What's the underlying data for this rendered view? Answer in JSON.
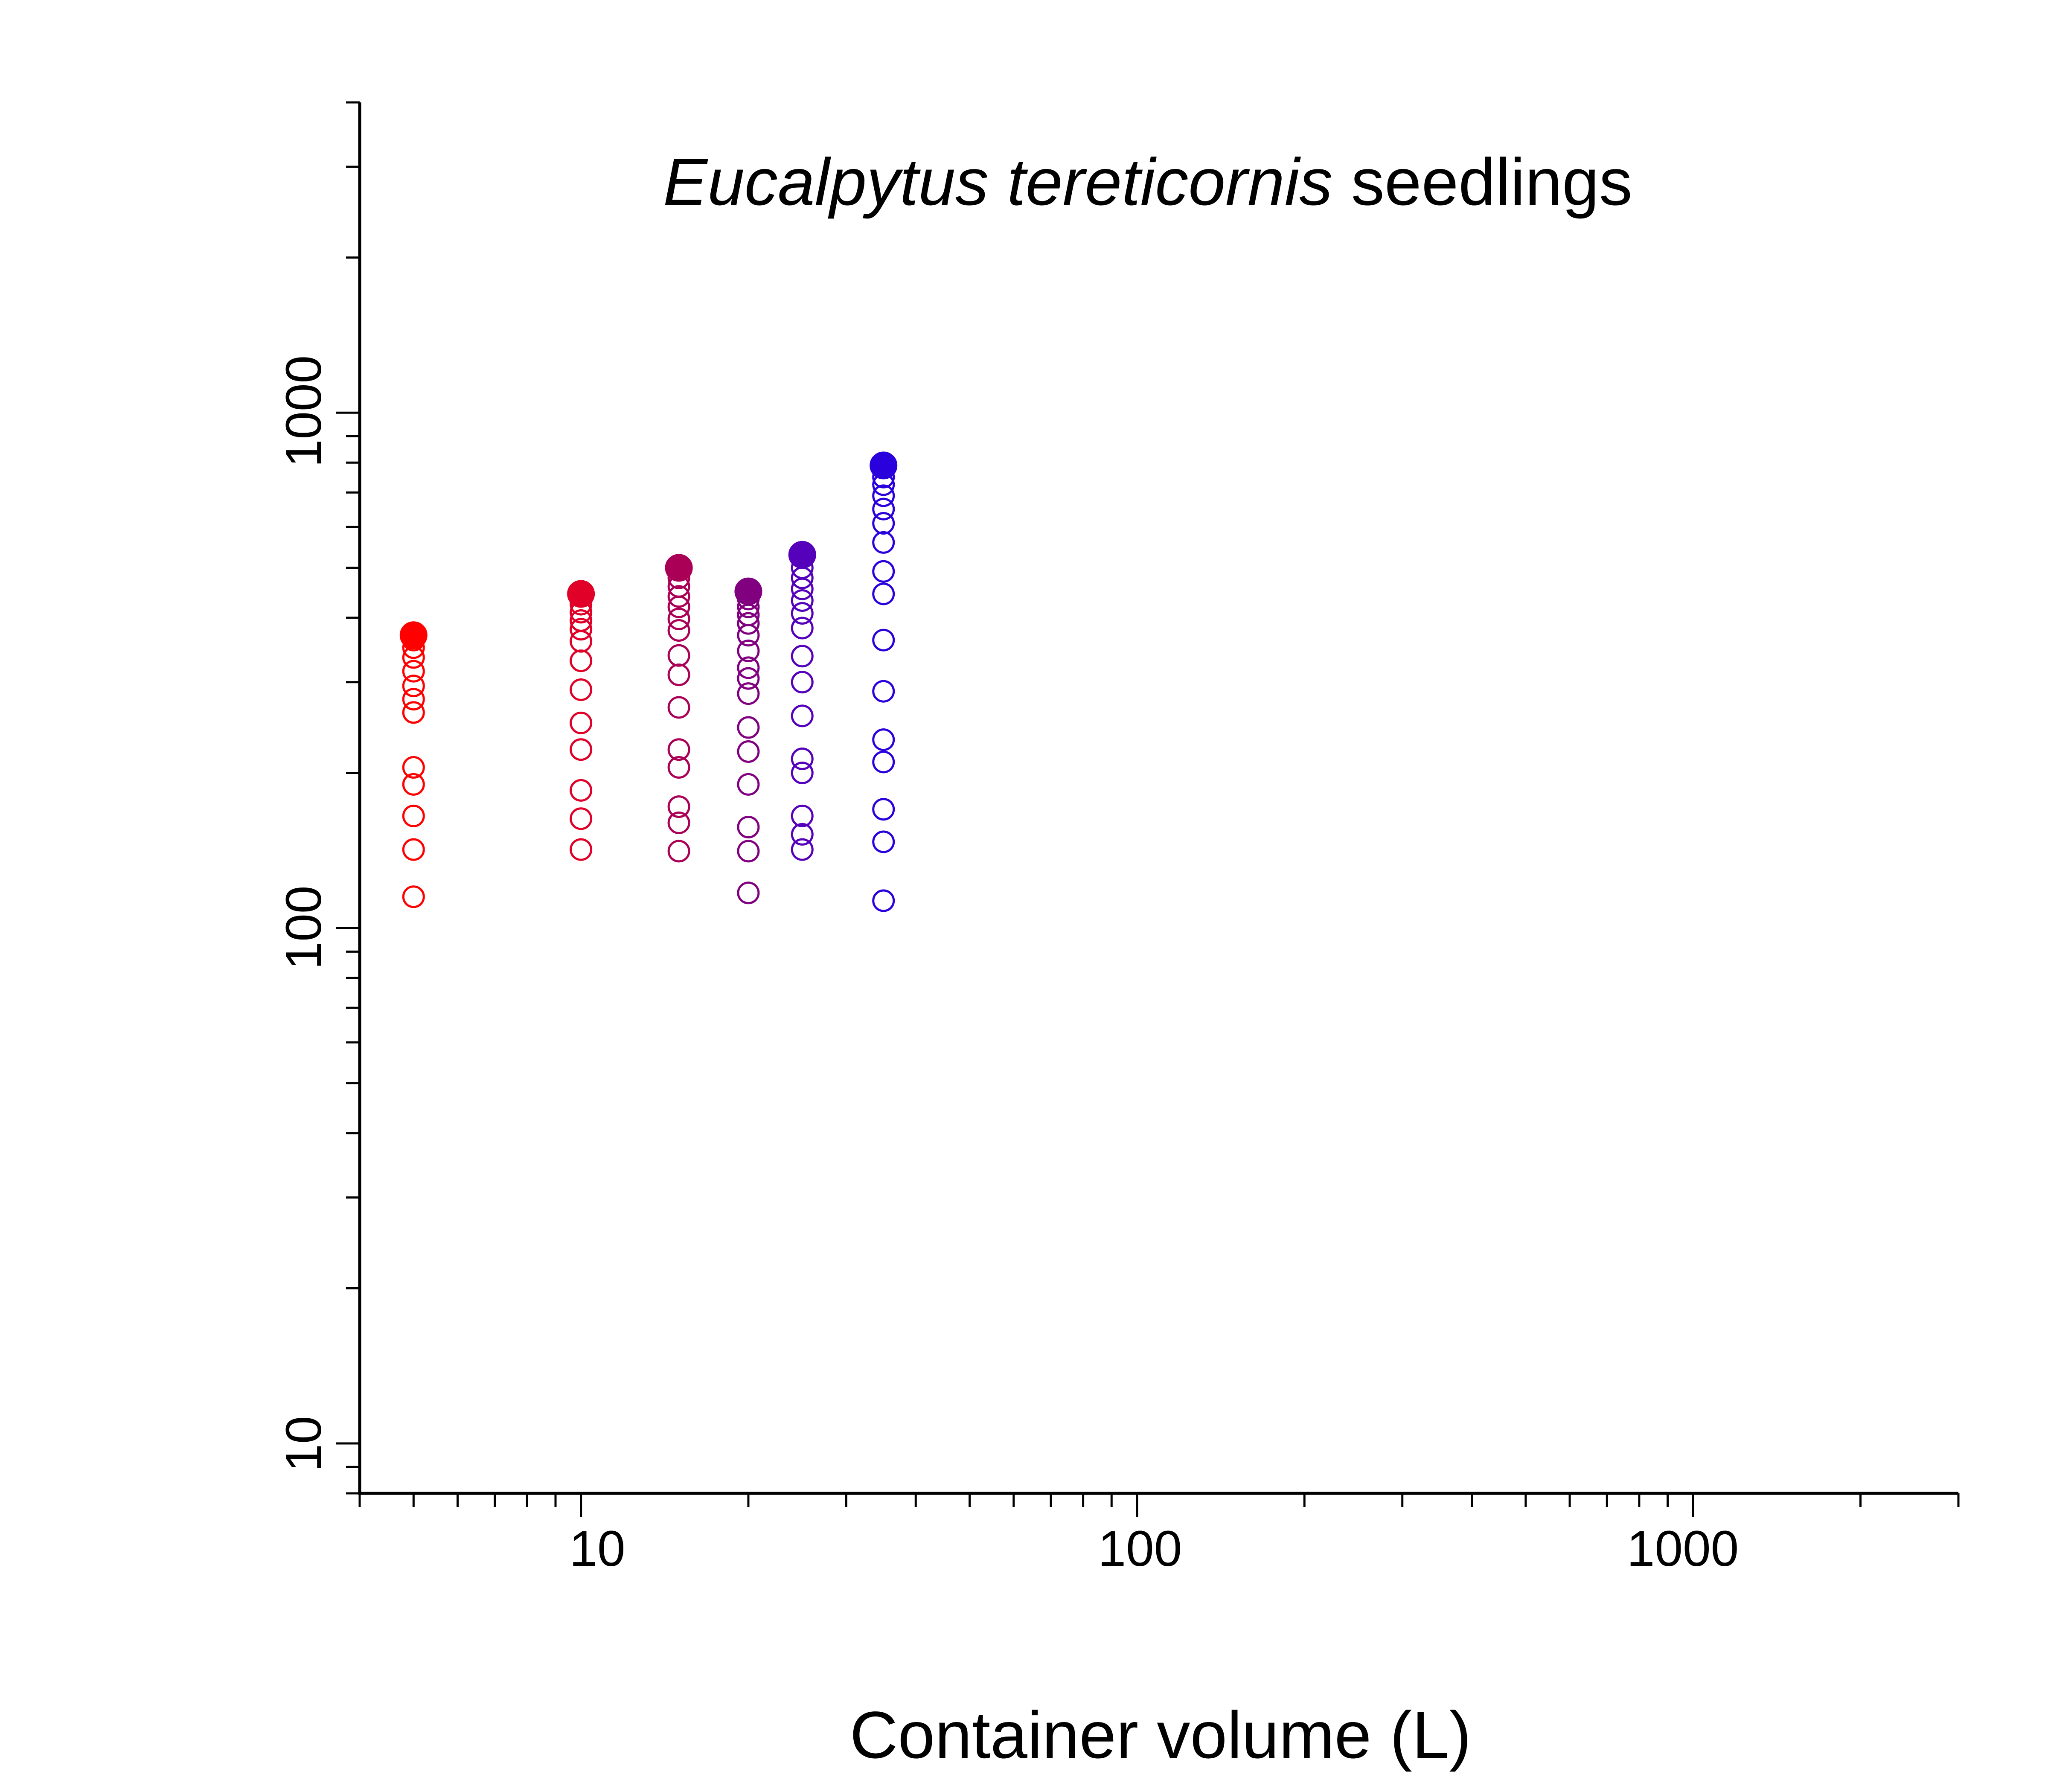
{
  "chart_data": {
    "type": "scatter",
    "title": {
      "italic": "Eucalpytus tereticornis",
      "plain": " seedlings"
    },
    "xlabel": "Container volume (L)",
    "ylabel": "",
    "xscale": "log",
    "yscale": "log",
    "xlim": [
      4,
      3000
    ],
    "ylim": [
      8,
      4000
    ],
    "x_ticks": [
      "10",
      "100",
      "1000"
    ],
    "y_ticks": [
      "10",
      "100",
      "1000"
    ],
    "grid": false,
    "legend": "none",
    "series": [
      {
        "x": 5,
        "color": "#ff0000",
        "highlight": 370,
        "values": [
          115,
          142,
          165,
          190,
          205,
          262,
          278,
          295,
          315,
          335,
          350,
          362
        ]
      },
      {
        "x": 10,
        "color": "#e00028",
        "highlight": 445,
        "values": [
          142,
          163,
          185,
          222,
          250,
          290,
          330,
          360,
          380,
          395,
          410,
          425
        ]
      },
      {
        "x": 15,
        "color": "#aa0055",
        "highlight": 500,
        "values": [
          141,
          160,
          172,
          205,
          222,
          268,
          310,
          338,
          378,
          398,
          420,
          440,
          460,
          478
        ]
      },
      {
        "x": 20,
        "color": "#800080",
        "highlight": 450,
        "values": [
          117,
          141,
          157,
          190,
          220,
          245,
          285,
          305,
          320,
          345,
          370,
          390,
          405,
          420,
          435
        ]
      },
      {
        "x": 25,
        "color": "#5500bb",
        "highlight": 530,
        "values": [
          142,
          152,
          165,
          200,
          213,
          258,
          300,
          337,
          382,
          408,
          432,
          455,
          478,
          500
        ]
      },
      {
        "x": 35,
        "color": "#2a00dd",
        "highlight": 790,
        "values": [
          113,
          147,
          170,
          210,
          232,
          288,
          362,
          445,
          492,
          560,
          610,
          650,
          690,
          725,
          750
        ]
      }
    ]
  }
}
